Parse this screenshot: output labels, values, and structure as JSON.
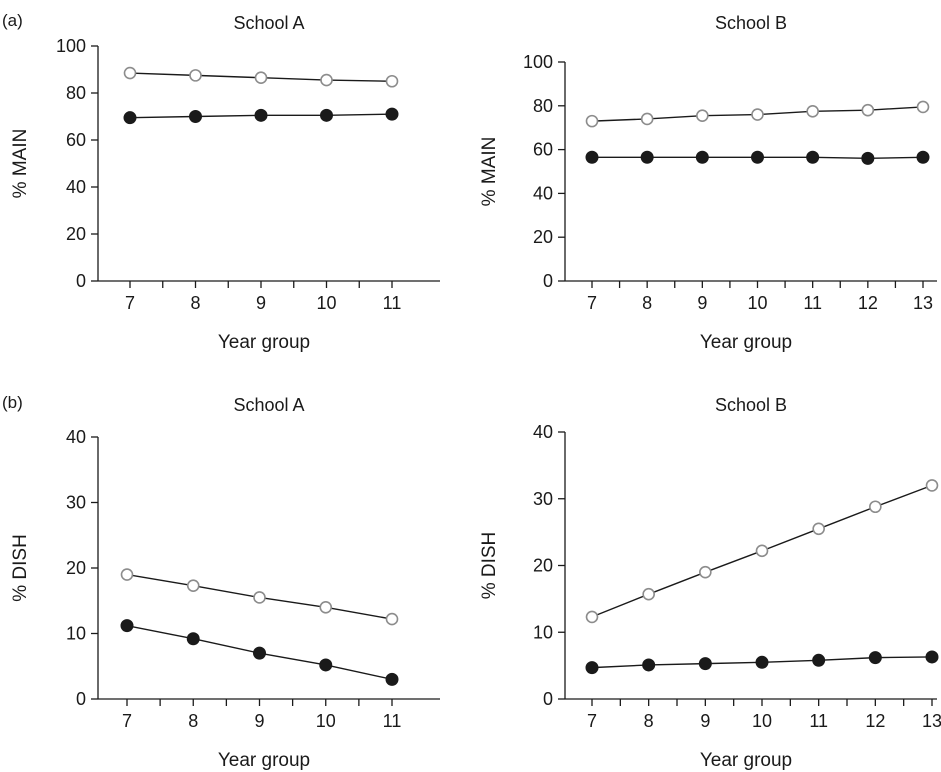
{
  "panel_labels": [
    "(a)",
    "(b)"
  ],
  "colors": {
    "axis": "#1a1a1a",
    "open_marker_stroke": "#8c8c8c",
    "filled_marker": "#1a1a1a",
    "line": "#1a1a1a"
  },
  "chart_data": [
    {
      "type": "line",
      "title": "School A",
      "xlabel": "Year group",
      "ylabel": "% MAIN",
      "categories": [
        7,
        8,
        9,
        10,
        11
      ],
      "ylim": [
        0,
        100
      ],
      "yticks": [
        0,
        20,
        40,
        60,
        80,
        100
      ],
      "series": [
        {
          "marker": "open",
          "values": [
            88.5,
            87.5,
            86.5,
            85.5,
            85
          ]
        },
        {
          "marker": "filled",
          "values": [
            69.5,
            70,
            70.5,
            70.5,
            71
          ]
        }
      ]
    },
    {
      "type": "line",
      "title": "School B",
      "xlabel": "Year group",
      "ylabel": "% MAIN",
      "categories": [
        7,
        8,
        9,
        10,
        11,
        12,
        13
      ],
      "ylim": [
        0,
        100
      ],
      "yticks": [
        0,
        20,
        40,
        60,
        80,
        100
      ],
      "series": [
        {
          "marker": "open",
          "values": [
            73,
            74,
            75.5,
            76,
            77.5,
            78,
            79.5
          ]
        },
        {
          "marker": "filled",
          "values": [
            56.5,
            56.5,
            56.5,
            56.5,
            56.5,
            56,
            56.5
          ]
        }
      ]
    },
    {
      "type": "line",
      "title": "School A",
      "xlabel": "Year group",
      "ylabel": "% DISH",
      "categories": [
        7,
        8,
        9,
        10,
        11
      ],
      "ylim": [
        0,
        40
      ],
      "yticks": [
        0,
        10,
        20,
        30,
        40
      ],
      "series": [
        {
          "marker": "open",
          "values": [
            19,
            17.3,
            15.5,
            14,
            12.2
          ]
        },
        {
          "marker": "filled",
          "values": [
            11.2,
            9.2,
            7,
            5.2,
            3
          ]
        }
      ]
    },
    {
      "type": "line",
      "title": "School B",
      "xlabel": "Year group",
      "ylabel": "% DISH",
      "categories": [
        7,
        8,
        9,
        10,
        11,
        12,
        13
      ],
      "ylim": [
        0,
        40
      ],
      "yticks": [
        0,
        10,
        20,
        30,
        40
      ],
      "series": [
        {
          "marker": "open",
          "values": [
            12.3,
            15.7,
            19,
            22.2,
            25.5,
            28.8,
            32
          ]
        },
        {
          "marker": "filled",
          "values": [
            4.7,
            5.1,
            5.3,
            5.5,
            5.8,
            6.2,
            6.3
          ]
        }
      ]
    }
  ]
}
